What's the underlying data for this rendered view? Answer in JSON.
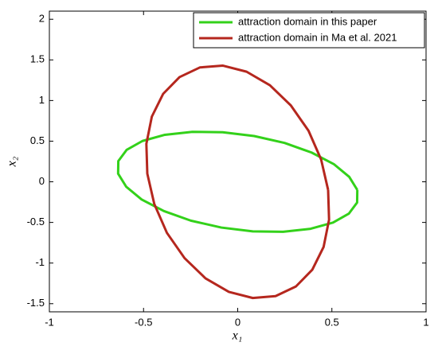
{
  "chart_data": {
    "type": "line",
    "xlabel": "x₁",
    "ylabel": "x₂",
    "xlim": [
      -1,
      1
    ],
    "ylim": [
      -1.6,
      2.1
    ],
    "xticks": [
      -1,
      -0.5,
      0,
      0.5,
      1
    ],
    "yticks": [
      -1.5,
      -1,
      -0.5,
      0,
      0.5,
      1,
      1.5,
      2
    ],
    "grid": false,
    "legend": "upper right",
    "series": [
      {
        "name": "attraction domain in this paper",
        "color": "#33d11a",
        "x": [
          0.635,
          0.592,
          0.51,
          0.392,
          0.249,
          0.087,
          -0.08,
          -0.241,
          -0.387,
          -0.506,
          -0.59,
          -0.634,
          -0.635,
          -0.592,
          -0.51,
          -0.392,
          -0.249,
          -0.087,
          0.08,
          0.241,
          0.387,
          0.506,
          0.59,
          0.634,
          0.635
        ],
        "values": [
          -0.1,
          0.061,
          0.218,
          0.36,
          0.478,
          0.563,
          0.61,
          0.615,
          0.578,
          0.502,
          0.392,
          0.255,
          0.1,
          -0.061,
          -0.218,
          -0.36,
          -0.478,
          -0.563,
          -0.61,
          -0.615,
          -0.578,
          -0.502,
          -0.392,
          -0.255,
          -0.1
        ]
      },
      {
        "name": "attraction domain in Ma et al. 2021",
        "color": "#b5271e",
        "x": [
          0.48,
          0.443,
          0.376,
          0.282,
          0.171,
          0.047,
          -0.08,
          -0.201,
          -0.309,
          -0.396,
          -0.456,
          -0.485,
          -0.48,
          -0.443,
          -0.376,
          -0.282,
          -0.171,
          -0.047,
          0.08,
          0.201,
          0.309,
          0.396,
          0.456,
          0.485,
          0.48
        ],
        "values": [
          -0.1,
          0.273,
          0.628,
          0.94,
          1.188,
          1.355,
          1.43,
          1.407,
          1.288,
          1.082,
          0.802,
          0.467,
          0.1,
          -0.273,
          -0.628,
          -0.94,
          -1.188,
          -1.355,
          -1.43,
          -1.407,
          -1.288,
          -1.082,
          -0.802,
          -0.467,
          -0.1
        ]
      }
    ]
  }
}
